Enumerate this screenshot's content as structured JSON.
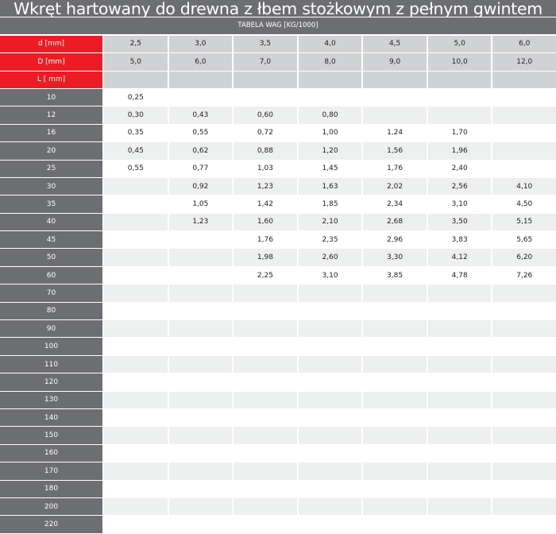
{
  "title": "Wkręt hartowany do drewna z łbem stożkowym z pełnym gwintem",
  "subtitle": "TABELA WAG [KG/1000]",
  "colors": {
    "label_bg": "#6d6e71",
    "header_label_bg": "#ed1c24",
    "header_cell_bg": "#d1d2d4",
    "stripe": "#eeefef"
  },
  "header_rows": [
    {
      "label": "d [mm]",
      "values": [
        "2,5",
        "3,0",
        "3,5",
        "4,0",
        "4,5",
        "5,0",
        "6,0"
      ]
    },
    {
      "label": "D [mm]",
      "values": [
        "5,0",
        "6,0",
        "7,0",
        "8,0",
        "9,0",
        "10,0",
        "12,0"
      ]
    },
    {
      "label": "L [ mm]",
      "values": [
        "",
        "",
        "",
        "",
        "",
        "",
        ""
      ]
    }
  ],
  "rows": [
    {
      "L": "10",
      "values": [
        "0,25",
        "",
        "",
        "",
        "",
        "",
        ""
      ]
    },
    {
      "L": "12",
      "values": [
        "0,30",
        "0,43",
        "0,60",
        "0,80",
        "",
        "",
        ""
      ]
    },
    {
      "L": "16",
      "values": [
        "0,35",
        "0,55",
        "0,72",
        "1,00",
        "1,24",
        "1,70",
        ""
      ]
    },
    {
      "L": "20",
      "values": [
        "0,45",
        "0,62",
        "0,88",
        "1,20",
        "1,56",
        "1,96",
        ""
      ]
    },
    {
      "L": "25",
      "values": [
        "0,55",
        "0,77",
        "1,03",
        "1,45",
        "1,76",
        "2,40",
        ""
      ]
    },
    {
      "L": "30",
      "values": [
        "",
        "0,92",
        "1,23",
        "1,63",
        "2,02",
        "2,56",
        "4,10"
      ]
    },
    {
      "L": "35",
      "values": [
        "",
        "1,05",
        "1,42",
        "1,85",
        "2,34",
        "3,10",
        "4,50"
      ]
    },
    {
      "L": "40",
      "values": [
        "",
        "1,23",
        "1,60",
        "2,10",
        "2,68",
        "3,50",
        "5,15"
      ]
    },
    {
      "L": "45",
      "values": [
        "",
        "",
        "1,76",
        "2,35",
        "2,96",
        "3,83",
        "5,65"
      ]
    },
    {
      "L": "50",
      "values": [
        "",
        "",
        "1,98",
        "2,60",
        "3,30",
        "4,12",
        "6,20"
      ]
    },
    {
      "L": "60",
      "values": [
        "",
        "",
        "2,25",
        "3,10",
        "3,85",
        "4,78",
        "7,26"
      ]
    },
    {
      "L": "70",
      "values": [
        "",
        "",
        "",
        "",
        "",
        "",
        ""
      ]
    },
    {
      "L": "80",
      "values": [
        "",
        "",
        "",
        "",
        "",
        "",
        ""
      ]
    },
    {
      "L": "90",
      "values": [
        "",
        "",
        "",
        "",
        "",
        "",
        ""
      ]
    },
    {
      "L": "100",
      "values": [
        "",
        "",
        "",
        "",
        "",
        "",
        ""
      ]
    },
    {
      "L": "110",
      "values": [
        "",
        "",
        "",
        "",
        "",
        "",
        ""
      ]
    },
    {
      "L": "120",
      "values": [
        "",
        "",
        "",
        "",
        "",
        "",
        ""
      ]
    },
    {
      "L": "130",
      "values": [
        "",
        "",
        "",
        "",
        "",
        "",
        ""
      ]
    },
    {
      "L": "140",
      "values": [
        "",
        "",
        "",
        "",
        "",
        "",
        ""
      ]
    },
    {
      "L": "150",
      "values": [
        "",
        "",
        "",
        "",
        "",
        "",
        ""
      ]
    },
    {
      "L": "160",
      "values": [
        "",
        "",
        "",
        "",
        "",
        "",
        ""
      ]
    },
    {
      "L": "170",
      "values": [
        "",
        "",
        "",
        "",
        "",
        "",
        ""
      ]
    },
    {
      "L": "180",
      "values": [
        "",
        "",
        "",
        "",
        "",
        "",
        ""
      ]
    },
    {
      "L": "200",
      "values": [
        "",
        "",
        "",
        "",
        "",
        "",
        ""
      ]
    },
    {
      "L": "220",
      "values": [
        "",
        "",
        "",
        "",
        "",
        "",
        ""
      ]
    }
  ]
}
